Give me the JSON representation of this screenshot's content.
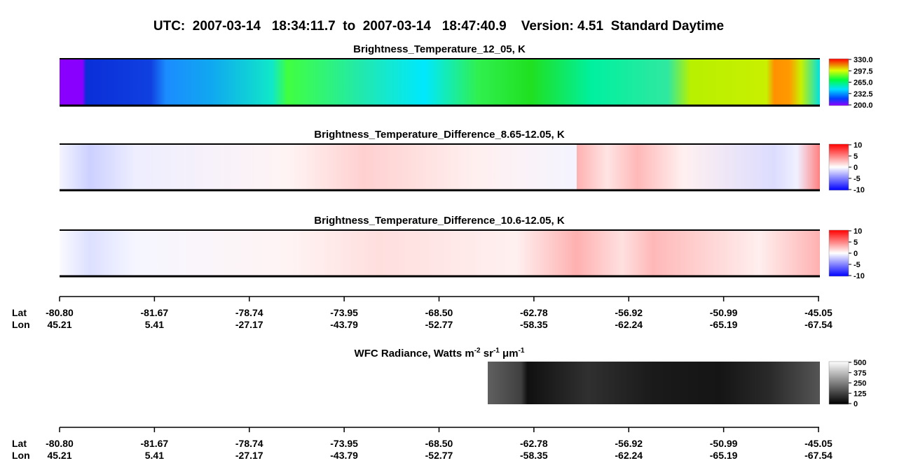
{
  "header": {
    "title": "UTC:  2007-03-14   18:34:11.7  to  2007-03-14   18:47:40.9    Version: 4.51  Standard Daytime"
  },
  "panels": [
    {
      "title": "Brightness_Temperature_12_05, K",
      "colorbar": [
        "330.0",
        "297.5",
        "265.0",
        "232.5",
        "200.0"
      ]
    },
    {
      "title": "Brightness_Temperature_Difference_8.65-12.05, K",
      "colorbar": [
        "10",
        "5",
        "0",
        "-5",
        "-10"
      ]
    },
    {
      "title": "Brightness_Temperature_Difference_10.6-12.05, K",
      "colorbar": [
        "10",
        "5",
        "0",
        "-5",
        "-10"
      ]
    },
    {
      "title_parts": [
        "WFC Radiance, Watts m",
        "-2",
        " sr",
        "-1",
        " μm",
        "-1"
      ],
      "colorbar": [
        "500",
        "375",
        "250",
        "125",
        "0"
      ]
    }
  ],
  "axis": {
    "lat_label": "Lat",
    "lon_label": "Lon",
    "lat": [
      "-80.80",
      "-81.67",
      "-78.74",
      "-73.95",
      "-68.50",
      "-62.78",
      "-56.92",
      "-50.99",
      "-45.05"
    ],
    "lon": [
      "45.21",
      "5.41",
      "-27.17",
      "-43.79",
      "-52.77",
      "-58.35",
      "-62.24",
      "-65.19",
      "-67.54"
    ]
  }
}
